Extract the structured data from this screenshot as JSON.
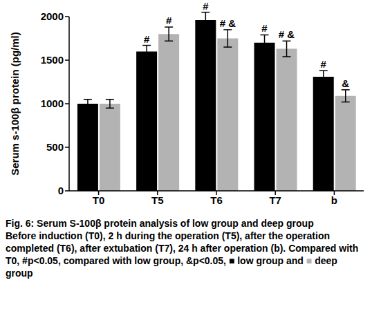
{
  "chart_data": {
    "type": "bar",
    "title": "Fig. 6: Serum S-100β protein analysis of low group and deep group",
    "subtitle": "Before induction (T0), 2 h during the operation (T5), after the operation completed (T6), after extubation (T7), 24 h after operation (b). Compared with T0, #p<0.05, compared with low group, &p<0.05, ■ low group and ■ deep group",
    "y_label": "Serum s-100β protein (pg/ml)",
    "categories": [
      "T0",
      "T5",
      "T6",
      "T7",
      "b"
    ],
    "series": [
      {
        "name": "low group",
        "color": "#000000",
        "values": [
          1000,
          1600,
          1960,
          1700,
          1310
        ],
        "errors": [
          50,
          70,
          90,
          90,
          70
        ],
        "annotations": [
          null,
          "#",
          "#",
          "#",
          "#"
        ]
      },
      {
        "name": "deep group",
        "color": "#b3b3b3",
        "values": [
          1000,
          1800,
          1750,
          1630,
          1090
        ],
        "errors": [
          50,
          80,
          100,
          90,
          70
        ],
        "annotations": [
          null,
          "#",
          "# &",
          "# &",
          "&"
        ]
      }
    ],
    "ylim": [
      0,
      2000
    ],
    "yticks": [
      0,
      500,
      1000,
      1500,
      2000
    ],
    "grid": false
  }
}
